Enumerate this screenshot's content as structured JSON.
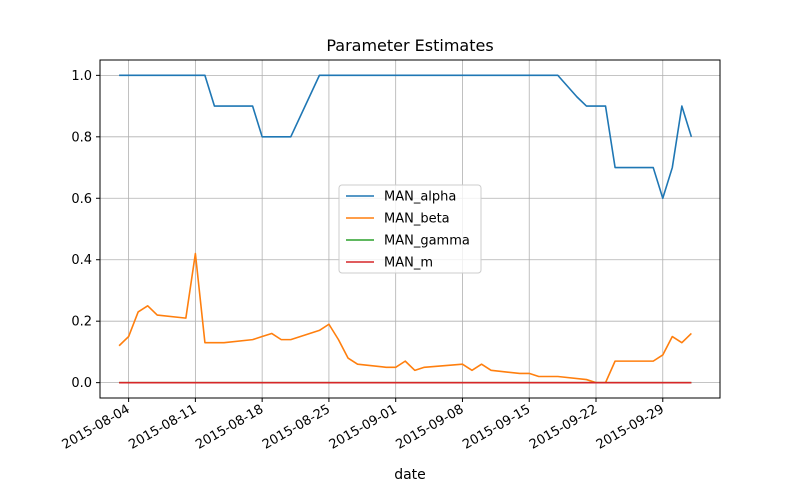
{
  "chart_data": {
    "type": "line",
    "title": "Parameter Estimates",
    "xlabel": "date",
    "ylabel": "",
    "ylim": [
      -0.05,
      1.05
    ],
    "xlim": [
      "2015-08-01",
      "2015-10-05"
    ],
    "grid": true,
    "legend_position": "center",
    "x_ticks": [
      "2015-08-04",
      "2015-08-11",
      "2015-08-18",
      "2015-08-25",
      "2015-09-01",
      "2015-09-08",
      "2015-09-15",
      "2015-09-22",
      "2015-09-29"
    ],
    "y_ticks": [
      "0.0",
      "0.2",
      "0.4",
      "0.6",
      "0.8",
      "1.0"
    ],
    "series": [
      {
        "name": "MAN_alpha",
        "color": "#1f77b4",
        "points": [
          [
            "2015-08-03",
            1.0
          ],
          [
            "2015-08-12",
            1.0
          ],
          [
            "2015-08-13",
            0.9
          ],
          [
            "2015-08-17",
            0.9
          ],
          [
            "2015-08-18",
            0.8
          ],
          [
            "2015-08-21",
            0.8
          ],
          [
            "2015-08-24",
            1.0
          ],
          [
            "2015-09-18",
            1.0
          ],
          [
            "2015-09-20",
            0.93
          ],
          [
            "2015-09-21",
            0.9
          ],
          [
            "2015-09-23",
            0.9
          ],
          [
            "2015-09-24",
            0.7
          ],
          [
            "2015-09-28",
            0.7
          ],
          [
            "2015-09-29",
            0.6
          ],
          [
            "2015-09-30",
            0.7
          ],
          [
            "2015-10-01",
            0.9
          ],
          [
            "2015-10-02",
            0.8
          ]
        ]
      },
      {
        "name": "MAN_beta",
        "color": "#ff7f0e",
        "points": [
          [
            "2015-08-03",
            0.12
          ],
          [
            "2015-08-04",
            0.15
          ],
          [
            "2015-08-05",
            0.23
          ],
          [
            "2015-08-06",
            0.25
          ],
          [
            "2015-08-07",
            0.22
          ],
          [
            "2015-08-10",
            0.21
          ],
          [
            "2015-08-11",
            0.42
          ],
          [
            "2015-08-12",
            0.13
          ],
          [
            "2015-08-14",
            0.13
          ],
          [
            "2015-08-17",
            0.14
          ],
          [
            "2015-08-18",
            0.15
          ],
          [
            "2015-08-19",
            0.16
          ],
          [
            "2015-08-20",
            0.14
          ],
          [
            "2015-08-21",
            0.14
          ],
          [
            "2015-08-24",
            0.17
          ],
          [
            "2015-08-25",
            0.19
          ],
          [
            "2015-08-26",
            0.14
          ],
          [
            "2015-08-27",
            0.08
          ],
          [
            "2015-08-28",
            0.06
          ],
          [
            "2015-08-31",
            0.05
          ],
          [
            "2015-09-01",
            0.05
          ],
          [
            "2015-09-02",
            0.07
          ],
          [
            "2015-09-03",
            0.04
          ],
          [
            "2015-09-04",
            0.05
          ],
          [
            "2015-09-08",
            0.06
          ],
          [
            "2015-09-09",
            0.04
          ],
          [
            "2015-09-10",
            0.06
          ],
          [
            "2015-09-11",
            0.04
          ],
          [
            "2015-09-14",
            0.03
          ],
          [
            "2015-09-15",
            0.03
          ],
          [
            "2015-09-16",
            0.02
          ],
          [
            "2015-09-18",
            0.02
          ],
          [
            "2015-09-21",
            0.01
          ],
          [
            "2015-09-22",
            0.0
          ],
          [
            "2015-09-23",
            0.0
          ],
          [
            "2015-09-24",
            0.07
          ],
          [
            "2015-09-28",
            0.07
          ],
          [
            "2015-09-29",
            0.09
          ],
          [
            "2015-09-30",
            0.15
          ],
          [
            "2015-10-01",
            0.13
          ],
          [
            "2015-10-02",
            0.16
          ]
        ]
      },
      {
        "name": "MAN_gamma",
        "color": "#2ca02c",
        "points": [
          [
            "2015-08-03",
            0.0
          ],
          [
            "2015-10-02",
            0.0
          ]
        ]
      },
      {
        "name": "MAN_m",
        "color": "#d62728",
        "points": [
          [
            "2015-08-03",
            0.0
          ],
          [
            "2015-10-02",
            0.0
          ]
        ]
      }
    ]
  }
}
